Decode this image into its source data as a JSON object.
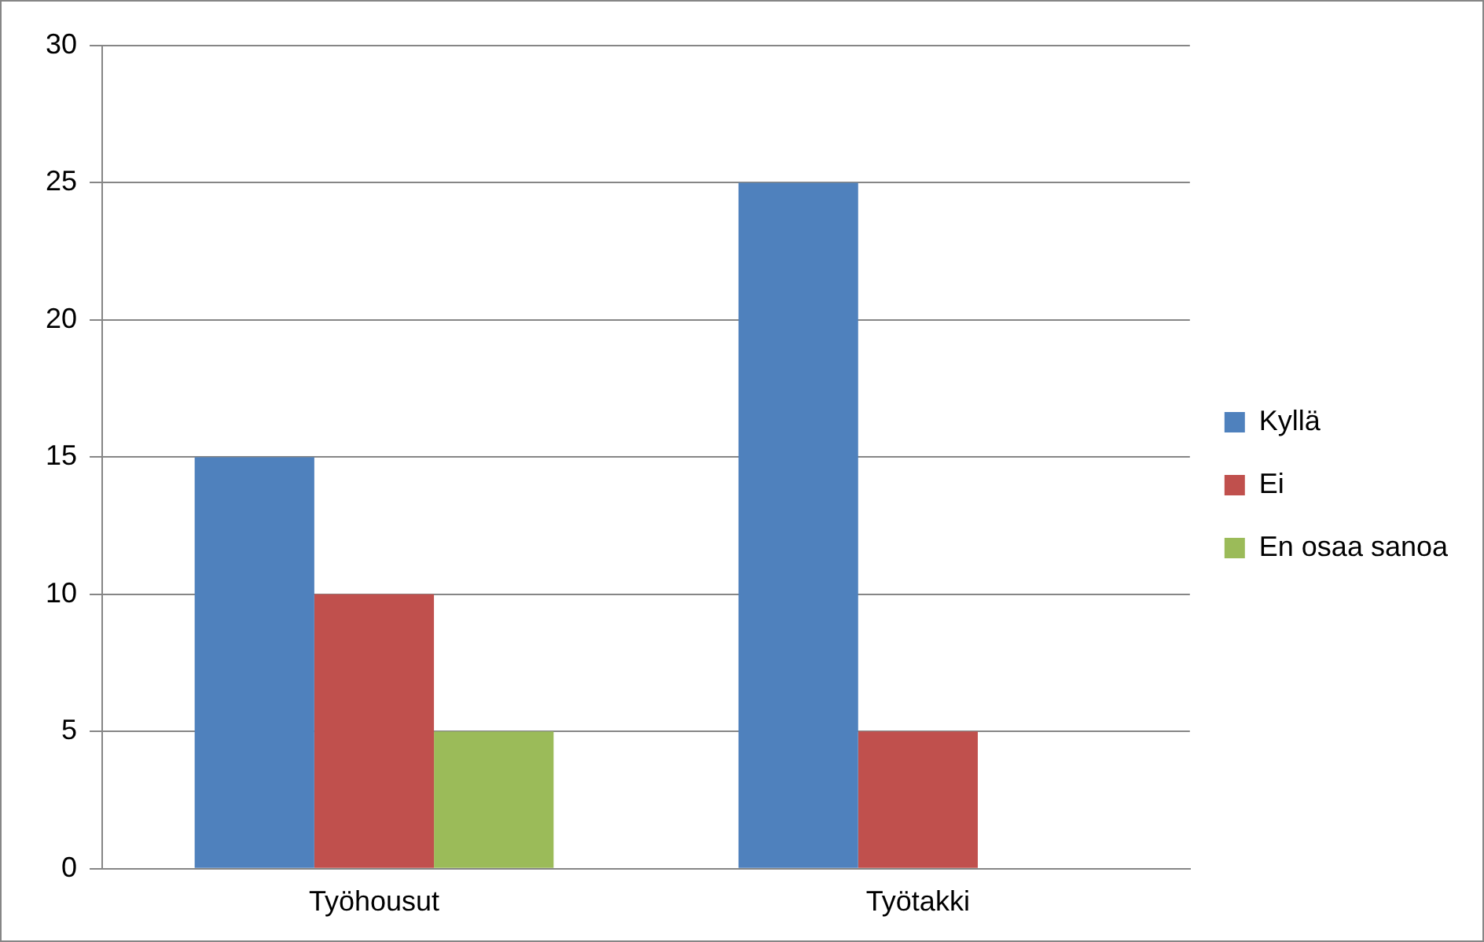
{
  "chart_data": {
    "type": "bar",
    "categories": [
      "Työhousut",
      "Työtakki"
    ],
    "series": [
      {
        "name": "Kyllä",
        "color": "#4f81bd",
        "values": [
          15,
          25
        ]
      },
      {
        "name": "Ei",
        "color": "#c0504d",
        "values": [
          10,
          5
        ]
      },
      {
        "name": "En osaa sanoa",
        "color": "#9bbb59",
        "values": [
          5,
          0
        ]
      }
    ],
    "ylim": [
      0,
      30
    ],
    "yticks": [
      0,
      5,
      10,
      15,
      20,
      25,
      30
    ],
    "grid": "y",
    "legend": "right"
  }
}
